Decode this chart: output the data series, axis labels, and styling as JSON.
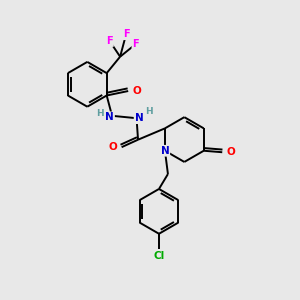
{
  "bg_color": "#e8e8e8",
  "atom_colors": {
    "C": "#000000",
    "N": "#0000cd",
    "O": "#ff0000",
    "F": "#ff00ff",
    "Cl": "#00aa00",
    "H": "#5f9ea0"
  },
  "bond_color": "#000000",
  "lw": 1.4
}
